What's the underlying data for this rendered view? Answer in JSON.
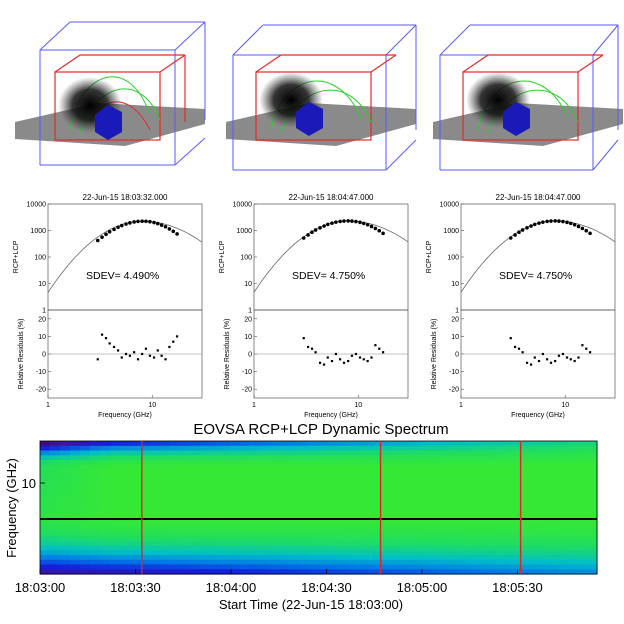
{
  "chart_data": [
    {
      "type": "scatter",
      "title": "22-Jun-15 18:03:32.000",
      "ylabel": "RCP+LCP",
      "xscale": "log",
      "yscale": "log",
      "xlim": [
        1,
        30
      ],
      "ylim": [
        1,
        10000
      ],
      "xticks": [
        "1",
        "10"
      ],
      "yticks": [
        "1",
        "10",
        "100",
        "1000",
        "10000"
      ],
      "annotation": "SDEV=  4.490%",
      "points_x": [
        3.0,
        3.3,
        3.6,
        3.9,
        4.3,
        4.7,
        5.1,
        5.6,
        6.1,
        6.7,
        7.3,
        8.0,
        8.7,
        9.5,
        10.4,
        11.3,
        12.3,
        13.4,
        14.6,
        15.9,
        17.3
      ],
      "points_y": [
        420,
        560,
        720,
        900,
        1100,
        1320,
        1540,
        1760,
        1950,
        2100,
        2200,
        2250,
        2230,
        2150,
        2000,
        1820,
        1600,
        1380,
        1150,
        930,
        740
      ],
      "residuals": {
        "ylabel": "Relative Residuals (%)",
        "xlabel": "Frequency (GHz)",
        "ylim": [
          -25,
          25
        ],
        "yticks": [
          "-20",
          "-10",
          "0",
          "10",
          "20"
        ],
        "xticks": [
          "1",
          "10"
        ],
        "x": [
          3.0,
          3.3,
          3.6,
          3.9,
          4.3,
          4.7,
          5.1,
          5.6,
          6.1,
          6.7,
          7.3,
          8.0,
          8.7,
          9.5,
          10.4,
          11.3,
          12.3,
          13.4,
          14.6,
          15.9,
          17.3
        ],
        "y": [
          -3,
          11,
          9,
          6,
          4,
          2,
          -2,
          0,
          -1,
          1,
          -3,
          0,
          3,
          -1,
          -2,
          2,
          -1,
          -3,
          4,
          7,
          10
        ]
      }
    },
    {
      "type": "scatter",
      "title": "22-Jun-15 18:04:47.000",
      "ylabel": "RCP+LCP",
      "xscale": "log",
      "yscale": "log",
      "xlim": [
        1,
        30
      ],
      "ylim": [
        1,
        10000
      ],
      "xticks": [
        "1",
        "10"
      ],
      "yticks": [
        "1",
        "10",
        "100",
        "1000",
        "10000"
      ],
      "annotation": "SDEV=  4.750%",
      "points_x": [
        3.0,
        3.3,
        3.6,
        3.9,
        4.3,
        4.7,
        5.1,
        5.6,
        6.1,
        6.7,
        7.3,
        8.0,
        8.7,
        9.5,
        10.4,
        11.3,
        12.3,
        13.4,
        14.6,
        15.9,
        17.3
      ],
      "points_y": [
        520,
        680,
        860,
        1050,
        1260,
        1480,
        1700,
        1900,
        2070,
        2200,
        2280,
        2300,
        2270,
        2180,
        2030,
        1850,
        1640,
        1420,
        1200,
        980,
        780
      ],
      "residuals": {
        "ylabel": "Relative Residuals (%)",
        "xlabel": "Frequency (GHz)",
        "ylim": [
          -25,
          25
        ],
        "yticks": [
          "-20",
          "-10",
          "0",
          "10",
          "20"
        ],
        "xticks": [
          "1",
          "10"
        ],
        "x": [
          3.0,
          3.3,
          3.6,
          3.9,
          4.3,
          4.7,
          5.1,
          5.6,
          6.1,
          6.7,
          7.3,
          8.0,
          8.7,
          9.5,
          10.4,
          11.3,
          12.3,
          13.4,
          14.6,
          15.9,
          17.3
        ],
        "y": [
          9,
          4,
          3,
          1,
          -5,
          -6,
          -2,
          -4,
          0,
          -3,
          -5,
          -4,
          -1,
          0,
          -2,
          -3,
          -4,
          -2,
          5,
          3,
          1
        ]
      }
    },
    {
      "type": "scatter",
      "title": "22-Jun-15 18:04:47.000",
      "ylabel": "RCP+LCP",
      "xscale": "log",
      "yscale": "log",
      "xlim": [
        1,
        30
      ],
      "ylim": [
        1,
        10000
      ],
      "xticks": [
        "1",
        "10"
      ],
      "yticks": [
        "1",
        "10",
        "100",
        "1000",
        "10000"
      ],
      "annotation": "SDEV=  4.750%",
      "points_x": [
        3.0,
        3.3,
        3.6,
        3.9,
        4.3,
        4.7,
        5.1,
        5.6,
        6.1,
        6.7,
        7.3,
        8.0,
        8.7,
        9.5,
        10.4,
        11.3,
        12.3,
        13.4,
        14.6,
        15.9,
        17.3
      ],
      "points_y": [
        520,
        680,
        860,
        1050,
        1260,
        1480,
        1700,
        1900,
        2070,
        2200,
        2280,
        2300,
        2270,
        2180,
        2030,
        1850,
        1640,
        1420,
        1200,
        980,
        780
      ],
      "residuals": {
        "ylabel": "Relative Residuals (%)",
        "xlabel": "Frequency (GHz)",
        "ylim": [
          -25,
          25
        ],
        "yticks": [
          "-20",
          "-10",
          "0",
          "10",
          "20"
        ],
        "xticks": [
          "1",
          "10"
        ],
        "x": [
          3.0,
          3.3,
          3.6,
          3.9,
          4.3,
          4.7,
          5.1,
          5.6,
          6.1,
          6.7,
          7.3,
          8.0,
          8.7,
          9.5,
          10.4,
          11.3,
          12.3,
          13.4,
          14.6,
          15.9,
          17.3
        ],
        "y": [
          9,
          4,
          3,
          1,
          -5,
          -6,
          -2,
          -4,
          0,
          -3,
          -5,
          -4,
          -1,
          0,
          -2,
          -3,
          -4,
          -2,
          5,
          3,
          1
        ]
      }
    },
    {
      "type": "heatmap",
      "title": "EOVSA RCP+LCP Dynamic Spectrum",
      "ylabel": "Frequency (GHz)",
      "xlabel": "Start Time (22-Jun-15 18:03:00)",
      "yticks": [
        "10"
      ],
      "xticks": [
        "18:03:00",
        "18:03:30",
        "18:04:00",
        "18:04:30",
        "18:05:00",
        "18:05:30"
      ],
      "xlim_seconds_after_start": [
        0,
        175
      ],
      "markers": {
        "vertical_red_lines_seconds": [
          32,
          107,
          151
        ],
        "horizontal_black_line_ghz": 7.0
      },
      "colors": {
        "marker": "#e8202a",
        "line": "#000000"
      }
    }
  ]
}
